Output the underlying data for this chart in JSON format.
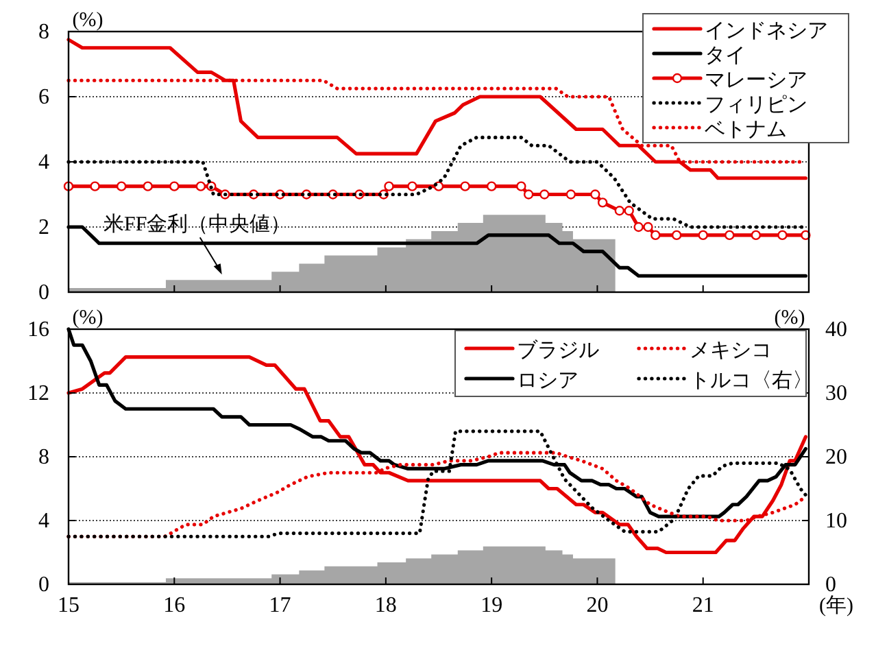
{
  "chart_data": [
    {
      "type": "line",
      "ylabel": "(%)",
      "xlim": [
        15,
        22
      ],
      "xticks": [
        15,
        16,
        17,
        18,
        19,
        20,
        21
      ],
      "ylim": [
        0,
        8
      ],
      "yticks": [
        0,
        2,
        4,
        6,
        8
      ],
      "grid": "y",
      "legend": "top right",
      "tick_labels": "y",
      "annotations": [
        {
          "text": "米FF金利（中央値）",
          "x": 16.45,
          "y": 0.375
        }
      ],
      "series": [
        {
          "type": "area",
          "color": "#a6a6a6",
          "x": [
            15,
            15.92,
            15.92,
            16.92,
            16.92,
            17.18,
            17.18,
            17.42,
            17.42,
            17.92,
            17.92,
            18.19,
            18.19,
            18.43,
            18.43,
            18.68,
            18.68,
            18.92,
            18.92,
            19.51,
            19.51,
            19.67,
            19.67,
            19.77,
            19.77,
            20.17,
            20.17
          ],
          "values": [
            0.125,
            0.125,
            0.375,
            0.375,
            0.625,
            0.625,
            0.875,
            0.875,
            1.125,
            1.125,
            1.375,
            1.375,
            1.625,
            1.625,
            1.875,
            1.875,
            2.125,
            2.125,
            2.375,
            2.375,
            2.125,
            2.125,
            1.875,
            1.875,
            1.625,
            1.625,
            0
          ]
        },
        {
          "name": "インドネシア",
          "color": "#e60000",
          "x": [
            15,
            15.13,
            15.96,
            16.22,
            16.35,
            16.48,
            16.56,
            16.63,
            16.79,
            17.54,
            17.72,
            18.29,
            18.47,
            18.65,
            18.73,
            18.89,
            19.46,
            19.8,
            20.05,
            20.21,
            20.39,
            20.55,
            20.78,
            20.88,
            21.07,
            21.14,
            21.97
          ],
          "values": [
            7.75,
            7.5,
            7.5,
            6.75,
            6.75,
            6.5,
            6.5,
            5.25,
            4.75,
            4.75,
            4.25,
            4.25,
            5.25,
            5.5,
            5.75,
            6,
            6,
            5,
            5,
            4.5,
            4.5,
            4,
            4,
            3.75,
            3.75,
            3.5,
            3.5
          ]
        },
        {
          "name": "タイ",
          "color": "#000000",
          "x": [
            15,
            15.13,
            15.29,
            18.86,
            18.97,
            19.54,
            19.64,
            19.77,
            19.87,
            20.05,
            20.21,
            20.29,
            20.39,
            21.97
          ],
          "values": [
            2,
            2,
            1.5,
            1.5,
            1.75,
            1.75,
            1.5,
            1.5,
            1.25,
            1.25,
            0.75,
            0.75,
            0.5,
            0.5
          ]
        },
        {
          "name": "マレーシア",
          "color": "#e60000",
          "marker": "circle",
          "x": [
            15,
            15.25,
            15.5,
            15.75,
            16,
            16.25,
            16.35,
            16.48,
            16.75,
            17,
            17.25,
            17.5,
            17.75,
            17.98,
            18.03,
            18.25,
            18.5,
            18.75,
            19,
            19.28,
            19.35,
            19.5,
            19.75,
            19.98,
            20.05,
            20.21,
            20.3,
            20.39,
            20.48,
            20.55,
            20.75,
            21,
            21.25,
            21.5,
            21.75,
            21.97
          ],
          "values": [
            3.25,
            3.25,
            3.25,
            3.25,
            3.25,
            3.25,
            3.25,
            3,
            3,
            3,
            3,
            3,
            3,
            3,
            3.25,
            3.25,
            3.25,
            3.25,
            3.25,
            3.25,
            3,
            3,
            3,
            3,
            2.75,
            2.5,
            2.5,
            2,
            2,
            1.75,
            1.75,
            1.75,
            1.75,
            1.75,
            1.75,
            1.75
          ]
        },
        {
          "name": "フィリピン",
          "color": "#000000",
          "line_style": "dotted",
          "x": [
            15,
            16.27,
            16.37,
            18.29,
            18.45,
            18.55,
            18.71,
            18.86,
            19.28,
            19.38,
            19.54,
            19.74,
            20,
            20.16,
            20.31,
            20.52,
            20.72,
            20.88,
            21.97
          ],
          "values": [
            4,
            4,
            3,
            3,
            3.25,
            3.5,
            4.5,
            4.75,
            4.75,
            4.5,
            4.5,
            4,
            4,
            3.5,
            2.75,
            2.25,
            2.25,
            2,
            2
          ]
        },
        {
          "name": "ベトナム",
          "color": "#e60000",
          "line_style": "dotted",
          "x": [
            15,
            17.41,
            17.54,
            19.61,
            19.72,
            20.11,
            20.24,
            20.42,
            20.7,
            20.78,
            21.97
          ],
          "values": [
            6.5,
            6.5,
            6.25,
            6.25,
            6,
            6,
            5,
            4.5,
            4.5,
            4,
            4
          ]
        }
      ]
    },
    {
      "type": "line",
      "xlabel": "(年)",
      "ylabel": "(%)",
      "y2label": "(%)",
      "xlim": [
        15,
        22
      ],
      "xticks": [
        15,
        16,
        17,
        18,
        19,
        20,
        21
      ],
      "ylim": [
        0,
        16
      ],
      "yticks": [
        0,
        4,
        8,
        12,
        16
      ],
      "y2lim": [
        0,
        40
      ],
      "y2ticks": [
        0,
        10,
        20,
        30,
        40
      ],
      "grid": "y",
      "legend": "top right",
      "series": [
        {
          "type": "area",
          "color": "#a6a6a6",
          "x": [
            15,
            15.92,
            15.92,
            16.92,
            16.92,
            17.18,
            17.18,
            17.42,
            17.42,
            17.92,
            17.92,
            18.19,
            18.19,
            18.43,
            18.43,
            18.68,
            18.68,
            18.92,
            18.92,
            19.51,
            19.51,
            19.67,
            19.67,
            19.77,
            19.77,
            20.17,
            20.17
          ],
          "values": [
            0.125,
            0.125,
            0.375,
            0.375,
            0.625,
            0.625,
            0.875,
            0.875,
            1.125,
            1.125,
            1.375,
            1.375,
            1.625,
            1.625,
            1.875,
            1.875,
            2.125,
            2.125,
            2.375,
            2.375,
            2.125,
            2.125,
            1.875,
            1.875,
            1.625,
            1.625,
            0
          ]
        },
        {
          "name": "ブラジル",
          "color": "#e60000",
          "x": [
            15,
            15.13,
            15.34,
            15.39,
            15.54,
            16.71,
            16.87,
            16.95,
            17.15,
            17.23,
            17.38,
            17.46,
            17.57,
            17.65,
            17.8,
            17.88,
            17.95,
            18.03,
            18.21,
            19.46,
            19.54,
            19.62,
            19.8,
            19.87,
            19.98,
            20.05,
            20.21,
            20.29,
            20.37,
            20.47,
            20.57,
            20.65,
            21.12,
            21.22,
            21.3,
            21.38,
            21.48,
            21.56,
            21.66,
            21.74,
            21.82,
            21.87,
            21.97
          ],
          "values": [
            12,
            12.25,
            13.25,
            13.25,
            14.25,
            14.25,
            13.75,
            13.75,
            12.25,
            12.25,
            10.25,
            10.25,
            9.25,
            9.25,
            7.5,
            7.5,
            7,
            7,
            6.5,
            6.5,
            6,
            6,
            5,
            5,
            4.5,
            4.5,
            3.75,
            3.75,
            3,
            2.25,
            2.25,
            2,
            2,
            2.75,
            2.75,
            3.5,
            4.25,
            4.25,
            5.25,
            6.25,
            7.75,
            7.75,
            9.25
          ]
        },
        {
          "name": "ロシア",
          "color": "#000000",
          "x": [
            15,
            15.05,
            15.13,
            15.21,
            15.29,
            15.36,
            15.44,
            15.54,
            16.37,
            16.45,
            16.63,
            16.71,
            17.1,
            17.18,
            17.31,
            17.39,
            17.46,
            17.62,
            17.7,
            17.77,
            17.85,
            17.95,
            18.03,
            18.08,
            18.21,
            18.55,
            18.71,
            18.86,
            18.97,
            19.48,
            19.59,
            19.69,
            19.74,
            19.85,
            19.95,
            20.03,
            20.11,
            20.18,
            20.26,
            20.37,
            20.42,
            20.5,
            20.58,
            21.15,
            21.2,
            21.28,
            21.33,
            21.41,
            21.53,
            21.61,
            21.69,
            21.78,
            21.87,
            21.97
          ],
          "values": [
            16,
            15,
            15,
            14,
            12.5,
            12.5,
            11.5,
            11,
            11,
            10.5,
            10.5,
            10,
            10,
            9.75,
            9.25,
            9.25,
            9,
            9,
            8.5,
            8.25,
            8.25,
            7.75,
            7.75,
            7.5,
            7.25,
            7.25,
            7.5,
            7.5,
            7.75,
            7.75,
            7.5,
            7.5,
            7,
            6.5,
            6.5,
            6.25,
            6.25,
            6,
            6,
            5.5,
            5.5,
            4.5,
            4.25,
            4.25,
            4.5,
            5,
            5,
            5.5,
            6.5,
            6.5,
            6.75,
            7.5,
            7.5,
            8.5
          ]
        },
        {
          "name": "メキシコ",
          "color": "#e60000",
          "line_style": "dotted",
          "x": [
            15,
            15.91,
            15.98,
            16.11,
            16.27,
            16.37,
            16.63,
            16.79,
            16.97,
            17.1,
            17.26,
            17.46,
            17.93,
            17.98,
            18.14,
            18.45,
            18.6,
            18.81,
            18.97,
            19.07,
            19.61,
            19.72,
            19.85,
            20.05,
            20.18,
            20.31,
            20.5,
            20.68,
            20.78,
            21.04,
            21.14,
            21.41,
            21.51,
            21.66,
            21.87,
            21.97
          ],
          "values": [
            3,
            3,
            3.25,
            3.75,
            3.75,
            4.25,
            4.75,
            5.25,
            5.75,
            6.25,
            6.75,
            7,
            7,
            7.25,
            7.5,
            7.5,
            7.75,
            7.75,
            8,
            8.25,
            8.25,
            8,
            7.75,
            7.25,
            6.5,
            6,
            5,
            4.5,
            4.25,
            4.25,
            4,
            4,
            4.25,
            4.5,
            5,
            5.5
          ]
        },
        {
          "name": "トルコ〈右〉",
          "color": "#000000",
          "line_style": "dotted",
          "axis": "y2",
          "x": [
            15,
            16.89,
            16.99,
            18.32,
            18.4,
            18.45,
            18.6,
            18.66,
            19.46,
            19.59,
            19.69,
            19.95,
            20.11,
            20.26,
            20.58,
            20.73,
            20.86,
            20.96,
            21.09,
            21.18,
            21.28,
            21.71,
            21.82,
            21.92,
            21.97
          ],
          "values": [
            7.5,
            7.5,
            8,
            8,
            16.5,
            17.75,
            17.75,
            24,
            24,
            19.75,
            16.5,
            12,
            10,
            8.25,
            8.25,
            10.25,
            15,
            17,
            17,
            18.5,
            19,
            19,
            18,
            15,
            14
          ]
        }
      ]
    }
  ]
}
